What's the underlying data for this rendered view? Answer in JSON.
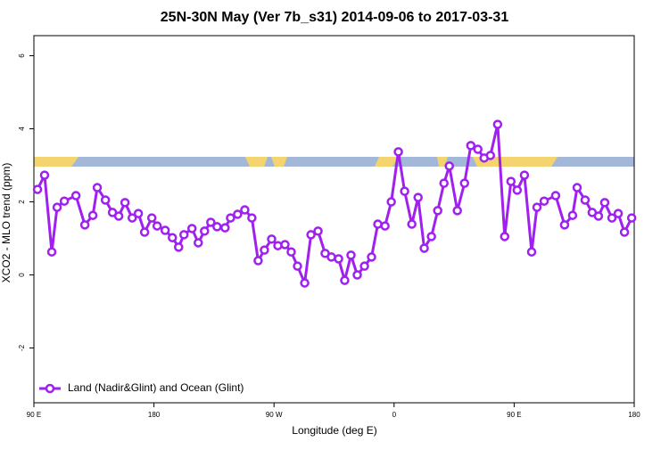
{
  "chart_data": {
    "type": "line",
    "title": "25N-30N May (Ver 7b_s31)   2014-09-06 to 2017-03-31",
    "xlabel": "Longitude (deg E)",
    "ylabel": "XCO2 - MLO trend (ppm)",
    "xlim": [
      90,
      540
    ],
    "ylim": [
      -3.5,
      6.55
    ],
    "xticks": [
      {
        "value": 90,
        "label": "90 E"
      },
      180,
      {
        "value": 270,
        "label": "90 W"
      },
      {
        "value": 360,
        "label": "0"
      },
      {
        "value": 450,
        "label": "90 E"
      },
      {
        "value": 540,
        "label": "180"
      }
    ],
    "yticks": [
      -2,
      0,
      2,
      4,
      6
    ],
    "legend": "bottom-left",
    "x": [
      92.7,
      98.0,
      103.4,
      107.4,
      112.8,
      121.5,
      128.2,
      134.2,
      137.5,
      143.6,
      148.9,
      153.6,
      158.3,
      163.7,
      168.3,
      173.0,
      178.4,
      182.4,
      188.4,
      193.8,
      198.5,
      202.5,
      208.5,
      213.2,
      217.9,
      222.6,
      227.3,
      233.3,
      237.4,
      242.7,
      248.1,
      253.4,
      258.1,
      262.8,
      268.2,
      272.9,
      278.2,
      282.9,
      287.6,
      293.0,
      297.7,
      303.0,
      308.3,
      313.0,
      318.4,
      323.0,
      327.7,
      332.4,
      337.8,
      343.1,
      347.8,
      353.2,
      357.9,
      363.2,
      367.9,
      373.3,
      378.0,
      382.6,
      388.0,
      392.7,
      397.4,
      401.4,
      407.4,
      412.8,
      417.5,
      422.8,
      427.5,
      432.2,
      437.6,
      442.9,
      447.6,
      452.3,
      457.7,
      463.1,
      467.1,
      472.5,
      481.1,
      487.8,
      493.8,
      497.2,
      503.2,
      508.5,
      513.2,
      517.9,
      523.3,
      528.0,
      532.7,
      538.1
    ],
    "series": [
      {
        "name": "Land (Nadir&Glint) and Ocean (Glint)",
        "color": "#a020f0",
        "values": [
          2.34,
          2.73,
          0.63,
          1.85,
          2.02,
          2.17,
          1.37,
          1.63,
          2.39,
          2.05,
          1.71,
          1.61,
          1.98,
          1.56,
          1.68,
          1.17,
          1.56,
          1.34,
          1.22,
          1.02,
          0.76,
          1.1,
          1.27,
          0.88,
          1.2,
          1.44,
          1.32,
          1.29,
          1.56,
          1.66,
          1.78,
          1.56,
          0.39,
          0.68,
          0.98,
          0.8,
          0.83,
          0.63,
          0.24,
          -0.22,
          1.1,
          1.2,
          0.59,
          0.49,
          0.44,
          -0.15,
          0.54,
          0.0,
          0.24,
          0.49,
          1.39,
          1.34,
          2.0,
          3.37,
          2.29,
          1.39,
          2.12,
          0.73,
          1.05,
          1.76,
          2.51,
          2.98,
          1.76,
          2.51,
          3.54,
          3.44,
          3.2,
          3.27,
          4.12,
          1.05,
          2.56,
          2.32,
          2.73,
          0.63,
          1.85,
          2.02,
          2.17,
          1.37,
          1.63,
          2.39,
          2.05,
          1.71,
          1.61,
          1.98,
          1.56,
          1.68,
          1.17,
          1.56
        ]
      }
    ]
  }
}
